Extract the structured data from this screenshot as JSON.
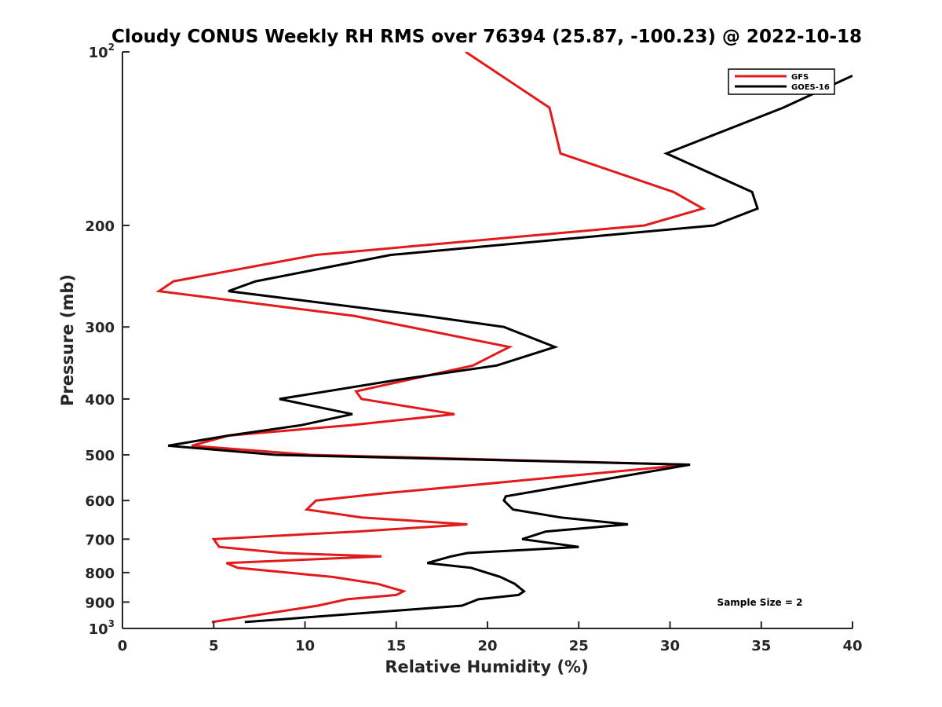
{
  "chart_data": {
    "type": "line",
    "title": "Cloudy CONUS Weekly RH RMS over 76394 (25.87, -100.23) @ 2022-10-18",
    "xlabel": "Relative Humidity (%)",
    "ylabel": "Pressure (mb)",
    "xlim": [
      0,
      40
    ],
    "ylim": [
      100,
      1000
    ],
    "y_scale": "log",
    "y_reversed": true,
    "grid": false,
    "legend_position": "top-right",
    "annotation": "Sample Size = 2",
    "x_ticks": [
      0,
      5,
      10,
      15,
      20,
      25,
      30,
      35,
      40
    ],
    "y_ticks": [
      {
        "value": 100,
        "base": "10",
        "exp": "2"
      },
      {
        "value": 200,
        "label": "200"
      },
      {
        "value": 300,
        "label": "300"
      },
      {
        "value": 400,
        "label": "400"
      },
      {
        "value": 500,
        "label": "500"
      },
      {
        "value": 600,
        "label": "600"
      },
      {
        "value": 700,
        "label": "700"
      },
      {
        "value": 800,
        "label": "800"
      },
      {
        "value": 900,
        "label": "900"
      },
      {
        "value": 1000,
        "base": "10",
        "exp": "3"
      }
    ],
    "series": [
      {
        "name": "GFS",
        "color": "#e31a1c",
        "points": [
          [
            18.8,
            100
          ],
          [
            23.4,
            125
          ],
          [
            24.0,
            150
          ],
          [
            30.2,
            175
          ],
          [
            31.8,
            187
          ],
          [
            28.6,
            200
          ],
          [
            10.6,
            225
          ],
          [
            2.8,
            250
          ],
          [
            2.0,
            260
          ],
          [
            12.7,
            287
          ],
          [
            21.2,
            325
          ],
          [
            19.2,
            350
          ],
          [
            12.8,
            388
          ],
          [
            13.1,
            400
          ],
          [
            18.2,
            425
          ],
          [
            12.5,
            444
          ],
          [
            5.8,
            463
          ],
          [
            3.8,
            482
          ],
          [
            10.3,
            500
          ],
          [
            31.0,
            520
          ],
          [
            17.7,
            570
          ],
          [
            14.3,
            583
          ],
          [
            10.6,
            600
          ],
          [
            10.1,
            622
          ],
          [
            13.1,
            642
          ],
          [
            18.9,
            660
          ],
          [
            12.9,
            679
          ],
          [
            5.0,
            700
          ],
          [
            5.3,
            722
          ],
          [
            8.8,
            740
          ],
          [
            14.2,
            750
          ],
          [
            5.7,
            770
          ],
          [
            6.3,
            785
          ],
          [
            11.5,
            814
          ],
          [
            14.0,
            837
          ],
          [
            15.4,
            862
          ],
          [
            15.0,
            875
          ],
          [
            12.3,
            890
          ],
          [
            10.7,
            913
          ],
          [
            4.9,
            975
          ]
        ]
      },
      {
        "name": "GOES-16",
        "color": "#000000",
        "points": [
          [
            40.0,
            110
          ],
          [
            36.2,
            125
          ],
          [
            29.8,
            150
          ],
          [
            34.5,
            175
          ],
          [
            34.8,
            187
          ],
          [
            32.4,
            200
          ],
          [
            14.7,
            225
          ],
          [
            7.3,
            250
          ],
          [
            5.8,
            260
          ],
          [
            16.6,
            287
          ],
          [
            20.9,
            300
          ],
          [
            23.7,
            325
          ],
          [
            20.5,
            350
          ],
          [
            15.2,
            370
          ],
          [
            8.6,
            400
          ],
          [
            12.6,
            425
          ],
          [
            9.8,
            444
          ],
          [
            5.8,
            463
          ],
          [
            2.5,
            482
          ],
          [
            8.4,
            500
          ],
          [
            31.1,
            520
          ],
          [
            21.0,
            590
          ],
          [
            20.9,
            600
          ],
          [
            21.4,
            622
          ],
          [
            24.0,
            642
          ],
          [
            27.7,
            660
          ],
          [
            23.2,
            679
          ],
          [
            21.9,
            700
          ],
          [
            25.0,
            722
          ],
          [
            18.9,
            740
          ],
          [
            18.0,
            750
          ],
          [
            16.7,
            770
          ],
          [
            19.1,
            785
          ],
          [
            20.7,
            814
          ],
          [
            21.5,
            837
          ],
          [
            22.0,
            862
          ],
          [
            21.7,
            875
          ],
          [
            19.5,
            890
          ],
          [
            18.6,
            913
          ],
          [
            6.7,
            975
          ]
        ]
      }
    ]
  }
}
